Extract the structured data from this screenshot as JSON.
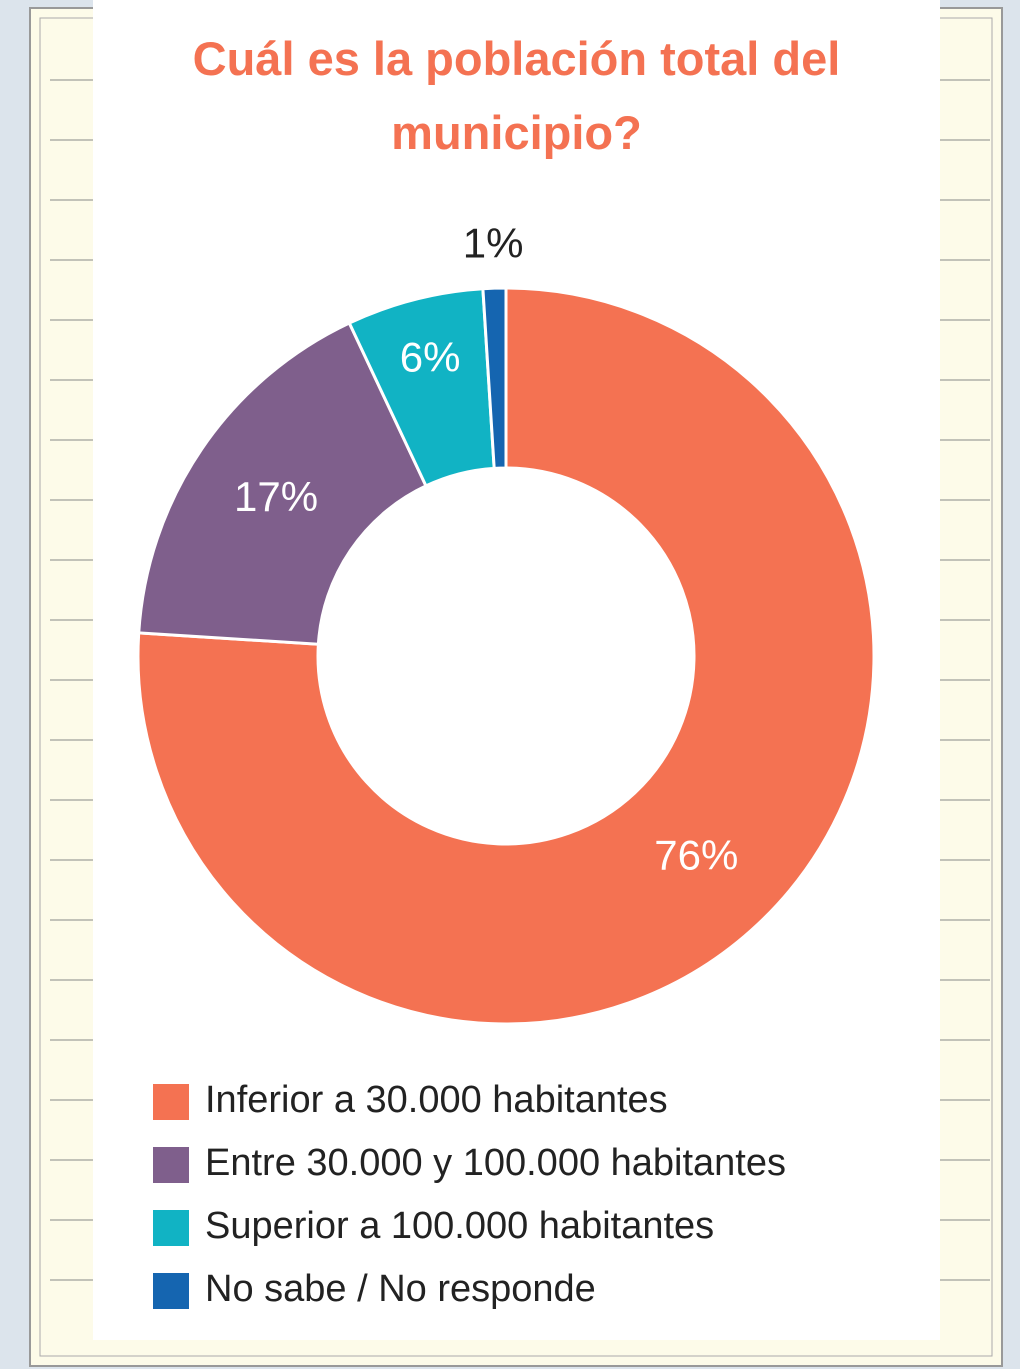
{
  "chart_data": {
    "type": "pie",
    "donut": true,
    "title": "Cuál es la población total  del municipio?",
    "categories": [
      "Inferior a 30.000 habitantes",
      "Entre 30.000 y 100.000 habitantes",
      "Superior a 100.000 habitantes",
      "No sabe / No responde"
    ],
    "values": [
      76,
      17,
      6,
      1
    ],
    "value_labels": [
      "76%",
      "17%",
      "6%",
      "1%"
    ],
    "colors": [
      "#f47252",
      "#7f5f8c",
      "#11b3c4",
      "#1565b0"
    ]
  }
}
